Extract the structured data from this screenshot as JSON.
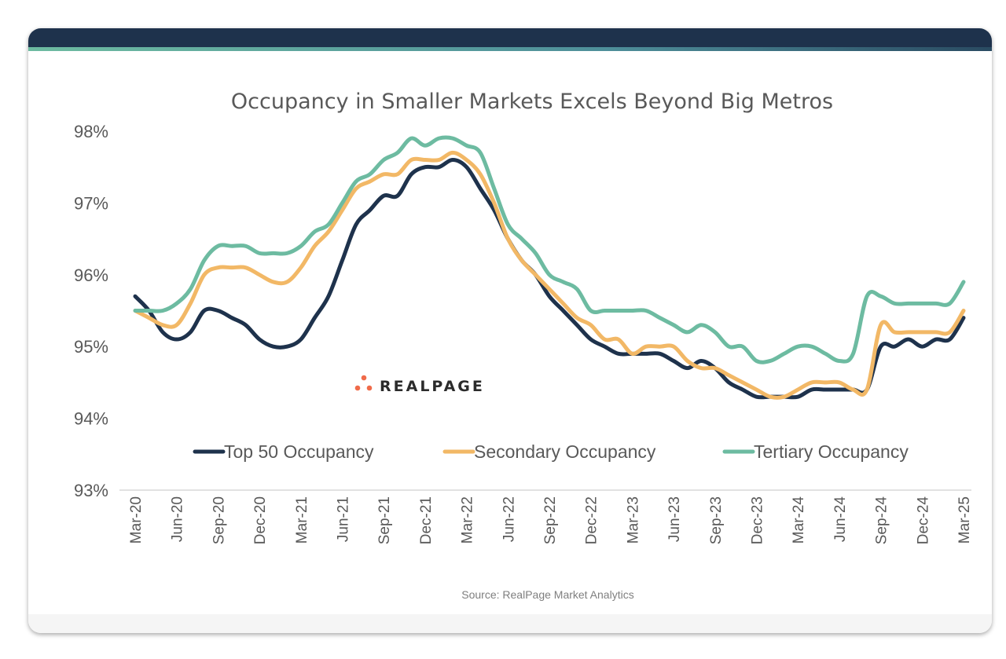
{
  "chart_data": {
    "type": "line",
    "title": "Occupancy in Smaller Markets Excels Beyond Big Metros",
    "source": "Source: RealPage Market Analytics",
    "logo": "REALPAGE",
    "ylim": [
      93,
      98
    ],
    "yticks": [
      "93%",
      "94%",
      "95%",
      "96%",
      "97%",
      "98%"
    ],
    "ytick_values": [
      93,
      94,
      95,
      96,
      97,
      98
    ],
    "xtick_labels": [
      "Mar-20",
      "Jun-20",
      "Sep-20",
      "Dec-20",
      "Mar-21",
      "Jun-21",
      "Sep-21",
      "Dec-21",
      "Mar-22",
      "Jun-22",
      "Sep-22",
      "Dec-22",
      "Mar-23",
      "Jun-23",
      "Sep-23",
      "Dec-23",
      "Mar-24",
      "Jun-24",
      "Sep-24",
      "Dec-24",
      "Mar-25"
    ],
    "x_start": "Mar-20",
    "x_end": "Mar-25",
    "x_frequency": "monthly",
    "grid": false,
    "legend_placement": "bottom-inside",
    "series": [
      {
        "name": "Top 50 Occupancy",
        "color": "#1e324c",
        "values": [
          95.7,
          95.5,
          95.2,
          95.1,
          95.2,
          95.5,
          95.5,
          95.4,
          95.3,
          95.1,
          95.0,
          95.0,
          95.1,
          95.4,
          95.7,
          96.2,
          96.7,
          96.9,
          97.1,
          97.1,
          97.4,
          97.5,
          97.5,
          97.6,
          97.5,
          97.2,
          96.9,
          96.5,
          96.2,
          96.0,
          95.7,
          95.5,
          95.3,
          95.1,
          95.0,
          94.9,
          94.9,
          94.9,
          94.9,
          94.8,
          94.7,
          94.8,
          94.7,
          94.5,
          94.4,
          94.3,
          94.3,
          94.3,
          94.3,
          94.4,
          94.4,
          94.4,
          94.4,
          94.4,
          95.0,
          95.0,
          95.1,
          95.0,
          95.1,
          95.1,
          95.4
        ]
      },
      {
        "name": "Secondary Occupancy",
        "color": "#f2b866",
        "values": [
          95.5,
          95.4,
          95.3,
          95.3,
          95.6,
          96.0,
          96.1,
          96.1,
          96.1,
          96.0,
          95.9,
          95.9,
          96.1,
          96.4,
          96.6,
          96.9,
          97.2,
          97.3,
          97.4,
          97.4,
          97.6,
          97.6,
          97.6,
          97.7,
          97.6,
          97.4,
          97.0,
          96.5,
          96.2,
          96.0,
          95.8,
          95.6,
          95.4,
          95.3,
          95.1,
          95.1,
          94.9,
          95.0,
          95.0,
          95.0,
          94.8,
          94.7,
          94.7,
          94.6,
          94.5,
          94.4,
          94.3,
          94.3,
          94.4,
          94.5,
          94.5,
          94.5,
          94.4,
          94.4,
          95.3,
          95.2,
          95.2,
          95.2,
          95.2,
          95.2,
          95.5
        ]
      },
      {
        "name": "Tertiary Occupancy",
        "color": "#6dbba1",
        "values": [
          95.5,
          95.5,
          95.5,
          95.6,
          95.8,
          96.2,
          96.4,
          96.4,
          96.4,
          96.3,
          96.3,
          96.3,
          96.4,
          96.6,
          96.7,
          97.0,
          97.3,
          97.4,
          97.6,
          97.7,
          97.9,
          97.8,
          97.9,
          97.9,
          97.8,
          97.7,
          97.2,
          96.7,
          96.5,
          96.3,
          96.0,
          95.9,
          95.8,
          95.5,
          95.5,
          95.5,
          95.5,
          95.5,
          95.4,
          95.3,
          95.2,
          95.3,
          95.2,
          95.0,
          95.0,
          94.8,
          94.8,
          94.9,
          95.0,
          95.0,
          94.9,
          94.8,
          94.9,
          95.7,
          95.7,
          95.6,
          95.6,
          95.6,
          95.6,
          95.6,
          95.9
        ]
      }
    ],
    "logo_colors": {
      "dots": "#f06b4a"
    }
  }
}
